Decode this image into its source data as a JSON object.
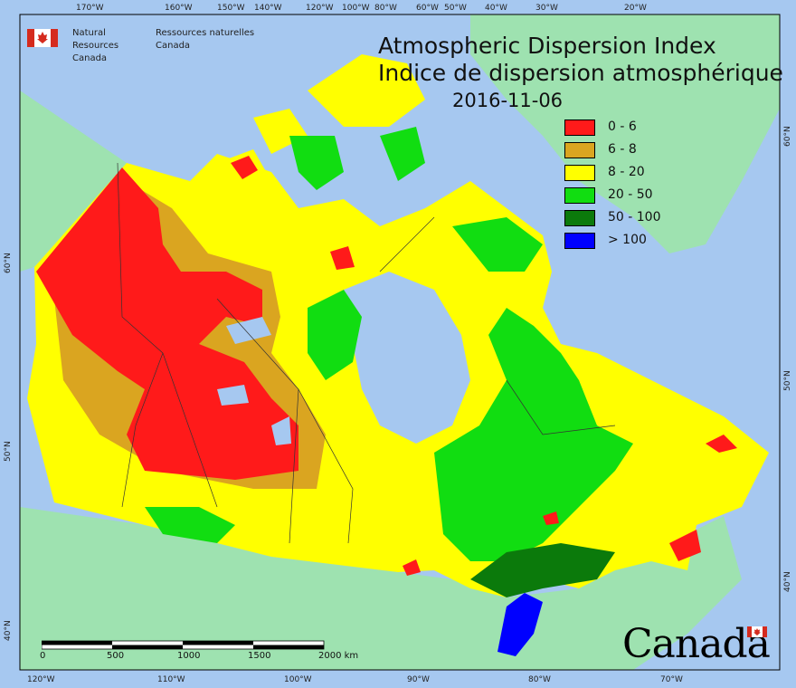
{
  "map": {
    "title_en": "Atmospheric Dispersion Index",
    "title_fr": "Indice de dispersion atmosphérique",
    "date": "2016-11-06",
    "organization": {
      "name_en_line1": "Natural Resources",
      "name_en_line2": "Canada",
      "name_fr_line1": "Ressources naturelles",
      "name_fr_line2": "Canada"
    },
    "wordmark": "Canada",
    "legend": [
      {
        "label": "0 - 6",
        "color": "#ff1a1a"
      },
      {
        "label": "6 - 8",
        "color": "#daa520"
      },
      {
        "label": "8 - 20",
        "color": "#ffff00"
      },
      {
        "label": "20 - 50",
        "color": "#11dd11"
      },
      {
        "label": "50 - 100",
        "color": "#0b7a0b"
      },
      {
        "label": "> 100",
        "color": "#0000ff"
      }
    ],
    "colors": {
      "ocean": "#a6c8f0",
      "land": "#9ee2b0"
    },
    "graticule_top": [
      "170°W",
      "160°W",
      "150°W",
      "140°W",
      "120°W",
      "100°W",
      "80°W",
      "60°W",
      "50°W",
      "40°W",
      "30°W",
      "20°W"
    ],
    "graticule_bottom": [
      "120°W",
      "110°W",
      "100°W",
      "90°W",
      "80°W",
      "70°W"
    ],
    "graticule_left": [
      "60°N",
      "50°N",
      "40°N"
    ],
    "graticule_right": [
      "60°N",
      "50°N",
      "40°N"
    ],
    "scale": {
      "ticks": [
        "0",
        "500",
        "1000",
        "1500",
        "2000 km"
      ]
    }
  }
}
